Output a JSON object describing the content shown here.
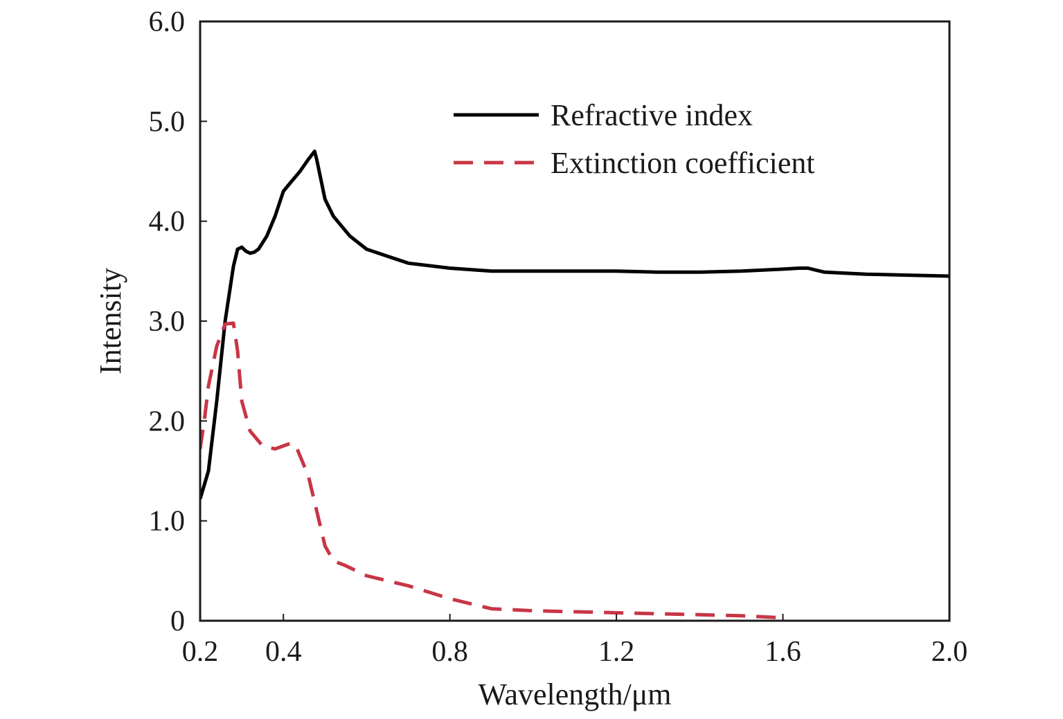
{
  "chart_data": {
    "type": "line",
    "xlabel": "Wavelength/μm",
    "ylabel": "Intensity",
    "xlim": [
      0.2,
      2.0
    ],
    "ylim": [
      0,
      6.0
    ],
    "x_ticks": [
      {
        "value": 0.2,
        "label": "0.2"
      },
      {
        "value": 0.4,
        "label": "0.4"
      },
      {
        "value": 0.8,
        "label": "0.8"
      },
      {
        "value": 1.2,
        "label": "1.2"
      },
      {
        "value": 1.6,
        "label": "1.6"
      },
      {
        "value": 2.0,
        "label": "2.0"
      }
    ],
    "y_ticks": [
      {
        "value": 0,
        "label": "0"
      },
      {
        "value": 1.0,
        "label": "1.0"
      },
      {
        "value": 2.0,
        "label": "2.0"
      },
      {
        "value": 3.0,
        "label": "3.0"
      },
      {
        "value": 4.0,
        "label": "4.0"
      },
      {
        "value": 5.0,
        "label": "5.0"
      },
      {
        "value": 6.0,
        "label": "6.0"
      }
    ],
    "grid": false,
    "legend_position": "top-right",
    "series": [
      {
        "name": "Refractive index",
        "color": "#000000",
        "style": "solid",
        "x": [
          0.2,
          0.22,
          0.24,
          0.26,
          0.28,
          0.29,
          0.3,
          0.31,
          0.32,
          0.33,
          0.34,
          0.36,
          0.38,
          0.4,
          0.42,
          0.43,
          0.44,
          0.46,
          0.475,
          0.48,
          0.49,
          0.5,
          0.52,
          0.56,
          0.6,
          0.65,
          0.7,
          0.8,
          0.9,
          1.0,
          1.1,
          1.2,
          1.3,
          1.4,
          1.5,
          1.6,
          1.64,
          1.66,
          1.68,
          1.7,
          1.8,
          1.9,
          2.0
        ],
        "y": [
          1.22,
          1.5,
          2.2,
          3.0,
          3.55,
          3.72,
          3.74,
          3.7,
          3.68,
          3.69,
          3.72,
          3.85,
          4.05,
          4.3,
          4.4,
          4.45,
          4.5,
          4.62,
          4.7,
          4.62,
          4.42,
          4.22,
          4.05,
          3.85,
          3.72,
          3.65,
          3.58,
          3.53,
          3.5,
          3.5,
          3.5,
          3.5,
          3.49,
          3.49,
          3.5,
          3.52,
          3.53,
          3.53,
          3.51,
          3.49,
          3.47,
          3.46,
          3.45
        ]
      },
      {
        "name": "Extinction coefficient",
        "color": "#c83646",
        "style": "dashed",
        "x": [
          0.2,
          0.21,
          0.22,
          0.24,
          0.26,
          0.28,
          0.29,
          0.3,
          0.32,
          0.35,
          0.38,
          0.4,
          0.42,
          0.43,
          0.44,
          0.46,
          0.48,
          0.5,
          0.52,
          0.55,
          0.6,
          0.7,
          0.8,
          0.9,
          1.0,
          1.1,
          1.2,
          1.3,
          1.4,
          1.5,
          1.6
        ],
        "y": [
          1.72,
          2.0,
          2.35,
          2.75,
          2.97,
          2.98,
          2.7,
          2.2,
          1.9,
          1.75,
          1.72,
          1.75,
          1.78,
          1.75,
          1.65,
          1.45,
          1.1,
          0.75,
          0.6,
          0.55,
          0.45,
          0.35,
          0.22,
          0.12,
          0.1,
          0.09,
          0.08,
          0.07,
          0.06,
          0.05,
          0.03
        ]
      }
    ]
  }
}
